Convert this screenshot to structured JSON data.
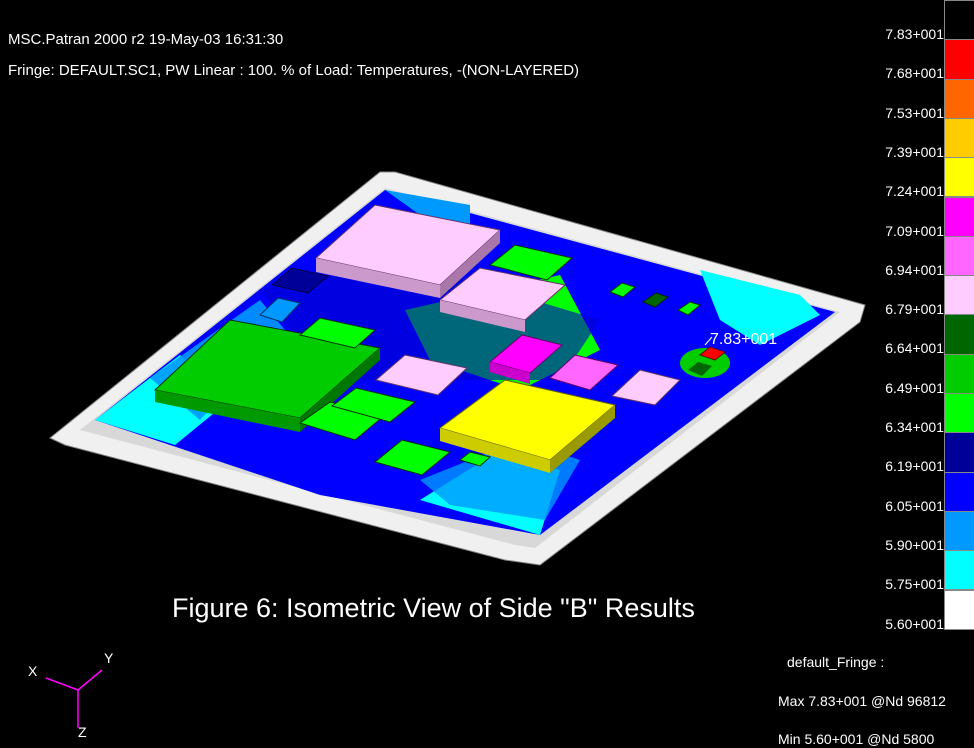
{
  "header": {
    "line1": "MSC.Patran 2000 r2 19-May-03 16:31:30",
    "line2": "Fringe: DEFAULT.SC1, PW Linear : 100. % of Load: Temperatures, -(NON-LAYERED)"
  },
  "caption": "Figure 6: Isometric View of Side \"B\" Results",
  "peak_label": "7.83+001",
  "legend": {
    "ticks": [
      "7.83+001",
      "7.68+001",
      "7.53+001",
      "7.39+001",
      "7.24+001",
      "7.09+001",
      "6.94+001",
      "6.79+001",
      "6.64+001",
      "6.49+001",
      "6.34+001",
      "6.19+001",
      "6.05+001",
      "5.90+001",
      "5.75+001",
      "5.60+001"
    ],
    "colors": [
      "#000000",
      "#ff0000",
      "#ff6600",
      "#ffcc00",
      "#ffff00",
      "#ff00ff",
      "#ff66ff",
      "#ffccff",
      "#006600",
      "#00cc00",
      "#00ff00",
      "#000099",
      "#0000ff",
      "#0099ff",
      "#00ffff",
      "#ffffff"
    ]
  },
  "fringe_info": {
    "name": "default_Fringe :",
    "max": "Max 7.83+001 @Nd 96812",
    "min": "Min 5.60+001 @Nd 5800"
  },
  "axes": {
    "x": "X",
    "y": "Y",
    "z": "Z"
  }
}
